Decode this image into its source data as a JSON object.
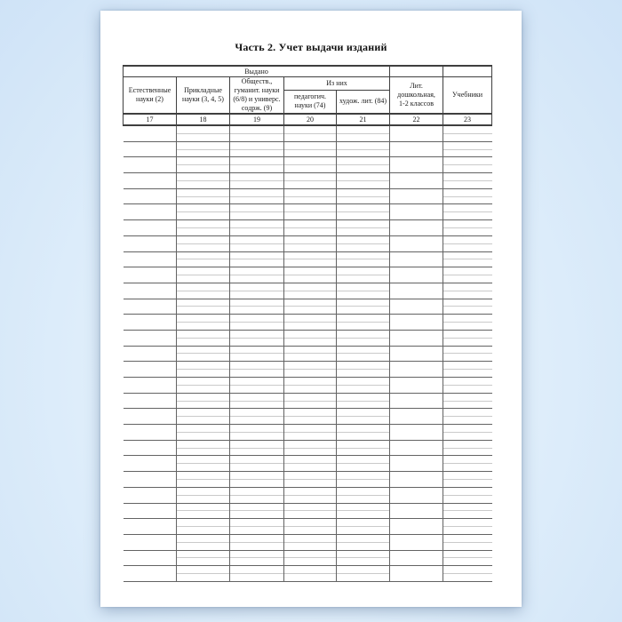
{
  "page": {
    "title": "Часть 2. Учет выдачи изданий"
  },
  "table": {
    "group_header": "Выдано",
    "subgroup_header": "Из них",
    "columns": [
      {
        "label": "Естественные\nнауки (2)",
        "number": "17"
      },
      {
        "label": "Прикладные\nнауки (3, 4, 5)",
        "number": "18"
      },
      {
        "label": "Обществ.,\nгуманит.  науки\n(6/8) и универс.\nсодрж. (9)",
        "number": "19"
      },
      {
        "label": "педагогич.\nнауки (74)",
        "number": "20"
      },
      {
        "label": "худож. лит. (84)",
        "number": "21"
      },
      {
        "label": "Лит.\nдошкольная,\n1-2 классов",
        "number": "22"
      },
      {
        "label": "Учебники",
        "number": "23"
      }
    ],
    "body_rows": 29,
    "cell_value": ""
  }
}
